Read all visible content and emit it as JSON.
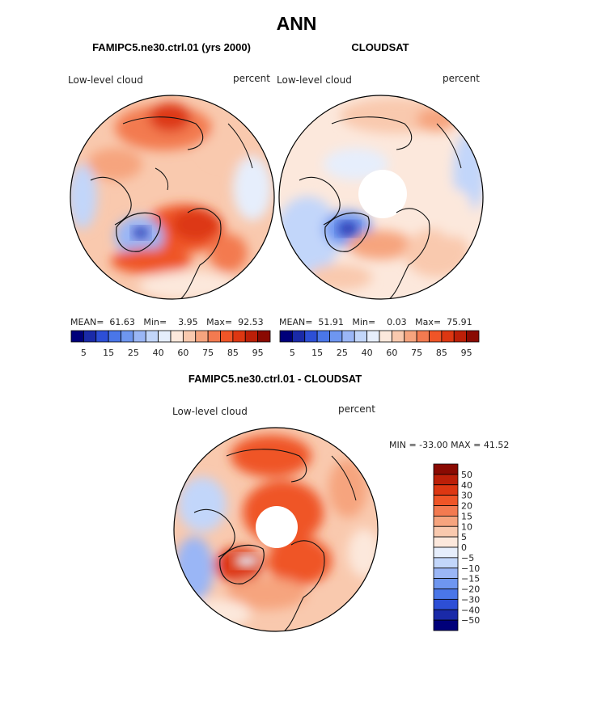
{
  "page_title": "ANN",
  "chart_data": [
    {
      "type": "heatmap",
      "projection": "north-polar-stereographic",
      "title": "FAMIPC5.ne30.ctrl.01 (yrs 2000)",
      "variable_label": "Low-level cloud",
      "units_label": "percent",
      "stats": {
        "mean_label": "MEAN=",
        "mean": "61.63",
        "min_label": "Min=",
        "min": "3.95",
        "max_label": "Max=",
        "max": "92.53"
      },
      "colorbar": {
        "orientation": "horizontal",
        "tick_labels": [
          "5",
          "15",
          "25",
          "40",
          "60",
          "75",
          "85",
          "95"
        ],
        "levels": [
          5,
          10,
          15,
          20,
          25,
          30,
          40,
          50,
          60,
          65,
          70,
          75,
          80,
          85,
          90,
          95
        ]
      },
      "has_polar_gap": false
    },
    {
      "type": "heatmap",
      "projection": "north-polar-stereographic",
      "title": "CLOUDSAT",
      "variable_label": "Low-level cloud",
      "units_label": "percent",
      "stats": {
        "mean_label": "MEAN=",
        "mean": "51.91",
        "min_label": "Min=",
        "min": "0.03",
        "max_label": "Max=",
        "max": "75.91"
      },
      "colorbar": {
        "orientation": "horizontal",
        "tick_labels": [
          "5",
          "15",
          "25",
          "40",
          "60",
          "75",
          "85",
          "95"
        ],
        "levels": [
          5,
          10,
          15,
          20,
          25,
          30,
          40,
          50,
          60,
          65,
          70,
          75,
          80,
          85,
          90,
          95
        ]
      },
      "has_polar_gap": true
    },
    {
      "type": "heatmap",
      "projection": "north-polar-stereographic",
      "title": "FAMIPC5.ne30.ctrl.01 - CLOUDSAT",
      "variable_label": "Low-level cloud",
      "units_label": "percent",
      "stats": {
        "text": "MIN = -33.00 MAX =  41.52"
      },
      "colorbar": {
        "orientation": "vertical",
        "tick_labels": [
          "50",
          "40",
          "30",
          "20",
          "15",
          "10",
          "5",
          "0",
          "−5",
          "−10",
          "−15",
          "−20",
          "−30",
          "−40",
          "−50"
        ]
      },
      "has_polar_gap": true
    }
  ],
  "palettes": {
    "absolute": [
      "#00007a",
      "#1a2aa8",
      "#2d4fd6",
      "#4a76e8",
      "#6e96f0",
      "#9ab6f6",
      "#c2d6fa",
      "#e6eefc",
      "#fce8dc",
      "#f9c9ae",
      "#f6a47e",
      "#f37a50",
      "#ef5527",
      "#dd3712",
      "#bc1f08",
      "#8a0a02"
    ],
    "difference": [
      "#8a0a02",
      "#bc1f08",
      "#dd3712",
      "#ef5527",
      "#f37a50",
      "#f6a47e",
      "#f9c9ae",
      "#fce8dc",
      "#e6eefc",
      "#c2d6fa",
      "#9ab6f6",
      "#6e96f0",
      "#4a76e8",
      "#2d4fd6",
      "#1a2aa8",
      "#00007a"
    ]
  }
}
